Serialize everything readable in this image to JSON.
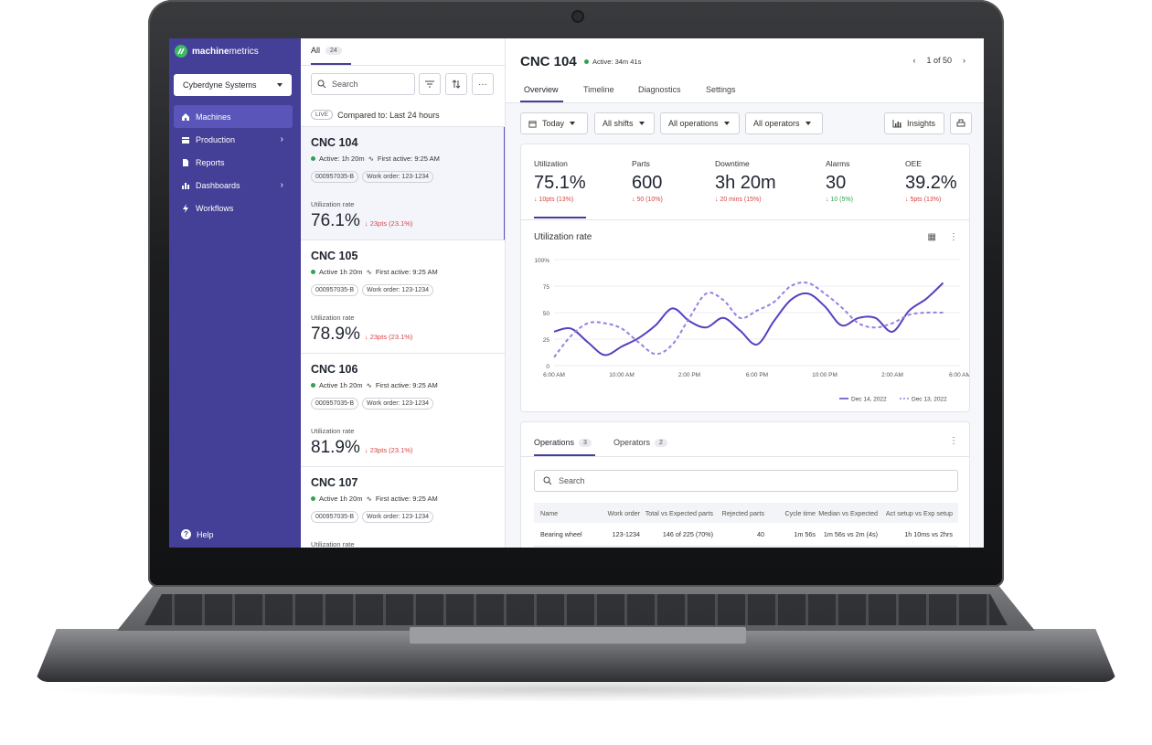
{
  "colors": {
    "sidebar": "#443f97",
    "accent": "#5a55b8",
    "green": "#2fa34e",
    "red": "#d64545"
  },
  "app": {
    "brand_bold": "machine",
    "brand_light": "metrics"
  },
  "sidebar": {
    "org": "Cyberdyne Systems",
    "items": [
      {
        "label": "Machines",
        "icon": "home-icon",
        "active": true,
        "has_children": false
      },
      {
        "label": "Production",
        "icon": "calendar-icon",
        "active": false,
        "has_children": true
      },
      {
        "label": "Reports",
        "icon": "document-icon",
        "active": false,
        "has_children": false
      },
      {
        "label": "Dashboards",
        "icon": "bar-chart-icon",
        "active": false,
        "has_children": true
      },
      {
        "label": "Workflows",
        "icon": "lightning-icon",
        "active": false,
        "has_children": false
      }
    ],
    "help": "Help"
  },
  "list": {
    "tab_label": "All",
    "tab_count": "24",
    "search_placeholder": "Search",
    "live": "LIVE",
    "compared": "Compared to: Last 24 hours",
    "cards": [
      {
        "title": "CNC 104",
        "status": "Active: 1h 20m",
        "first_active": "First active: 9:25 AM",
        "part": "000957035-B",
        "work_order": "Work order: 123-1234",
        "util_label": "Utilization rate",
        "util": "76.1%",
        "delta": "23pts (23.1%)"
      },
      {
        "title": "CNC 105",
        "status": "Active 1h 20m",
        "first_active": "First active: 9:25 AM",
        "part": "000957035-B",
        "work_order": "Work order: 123-1234",
        "util_label": "Utilization rate",
        "util": "78.9%",
        "delta": "23pts (23.1%)"
      },
      {
        "title": "CNC 106",
        "status": "Active 1h 20m",
        "first_active": "First active: 9:25 AM",
        "part": "000957035-B",
        "work_order": "Work order: 123-1234",
        "util_label": "Utilization rate",
        "util": "81.9%",
        "delta": "23pts (23.1%)"
      },
      {
        "title": "CNC 107",
        "status": "Active 1h 20m",
        "first_active": "First active: 9:25 AM",
        "part": "000957035-B",
        "work_order": "Work order: 123-1234",
        "util_label": "Utilization rate",
        "util": "",
        "delta": ""
      }
    ]
  },
  "detail": {
    "title": "CNC 104",
    "active": "Active: 34m 41s",
    "pager": "1 of 50",
    "tabs": [
      "Overview",
      "Timeline",
      "Diagnostics",
      "Settings"
    ],
    "filters": [
      "Today",
      "All shifts",
      "All operations",
      "All operators"
    ],
    "insights": "Insights",
    "kpis": [
      {
        "label": "Utilization",
        "value": "75.1%",
        "delta": "10pts (13%)",
        "dir": "down"
      },
      {
        "label": "Parts",
        "value": "600",
        "delta": "50 (10%)",
        "dir": "down"
      },
      {
        "label": "Downtime",
        "value": "3h 20m",
        "delta": "20 mins (15%)",
        "dir": "down"
      },
      {
        "label": "Alarms",
        "value": "30",
        "delta": "10 (5%)",
        "dir": "up"
      },
      {
        "label": "OEE",
        "value": "39.2%",
        "delta": "5pts (13%)",
        "dir": "down"
      }
    ],
    "chart_title": "Utilization rate",
    "ops_tabs": [
      {
        "label": "Operations",
        "count": "3"
      },
      {
        "label": "Operators",
        "count": "2"
      }
    ],
    "ops_search": "Search",
    "ops_columns": [
      "Name",
      "Work order",
      "Total vs Expected parts",
      "Rejected parts",
      "Cycle time",
      "Median vs Expected",
      "Act setup vs Exp setup"
    ],
    "ops_rows": [
      [
        "Bearing wheel",
        "123-1234",
        "146 of 225 (70%)",
        "40",
        "1m 56s",
        "1m 56s vs 2m (4s)",
        "1h 10ms vs 2hrs"
      ]
    ]
  },
  "chart_data": {
    "type": "line",
    "title": "Utilization rate",
    "x_ticks": [
      "6:00 AM",
      "10:00 AM",
      "2:00 PM",
      "6:00 PM",
      "10:00 PM",
      "2:00 AM",
      "6:00 AM"
    ],
    "y_ticks": [
      "0",
      "25",
      "50",
      "75",
      "100%"
    ],
    "ylim": [
      0,
      100
    ],
    "xlim": [
      0,
      24
    ],
    "legend_position": "bottom-right",
    "series": [
      {
        "name": "Dec 14, 2022",
        "style": "solid",
        "color": "#5a3fc0",
        "x": [
          0,
          1,
          2,
          3,
          4,
          5,
          6,
          7,
          8,
          9,
          10,
          11,
          12,
          13,
          14,
          15,
          16,
          17,
          18,
          19,
          20,
          21,
          22,
          23
        ],
        "y": [
          32,
          35,
          22,
          10,
          18,
          26,
          38,
          54,
          42,
          36,
          45,
          33,
          20,
          42,
          62,
          68,
          56,
          38,
          45,
          45,
          32,
          52,
          63,
          78
        ]
      },
      {
        "name": "Dec 13, 2022",
        "style": "dashed",
        "color": "#9b7fe0",
        "x": [
          0,
          1,
          2,
          3,
          4,
          5,
          6,
          7,
          8,
          9,
          10,
          11,
          12,
          13,
          14,
          15,
          16,
          17,
          18,
          19,
          20,
          21,
          22,
          23
        ],
        "y": [
          8,
          28,
          40,
          40,
          35,
          22,
          11,
          20,
          45,
          68,
          62,
          45,
          52,
          60,
          75,
          78,
          68,
          55,
          40,
          36,
          40,
          48,
          50,
          50
        ]
      }
    ]
  }
}
